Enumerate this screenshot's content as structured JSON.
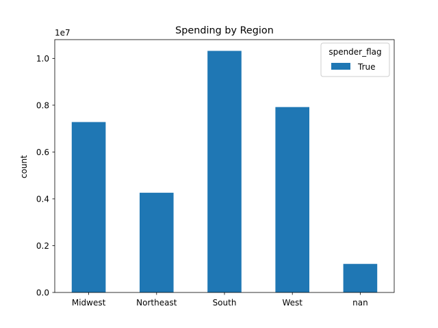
{
  "chart_data": {
    "type": "bar",
    "title": "Spending by Region",
    "xlabel": "",
    "ylabel": "count",
    "offset_text": "1e7",
    "categories": [
      "Midwest",
      "Northeast",
      "South",
      "West",
      "nan"
    ],
    "series": [
      {
        "name": "True",
        "values": [
          7280000,
          4260000,
          10320000,
          7920000,
          1220000
        ]
      }
    ],
    "ylim": [
      0,
      10800000
    ],
    "yticks": [
      0,
      2000000,
      4000000,
      6000000,
      8000000,
      10000000
    ],
    "ytick_labels": [
      "0.0",
      "0.2",
      "0.4",
      "0.6",
      "0.8",
      "1.0"
    ],
    "legend": {
      "title": "spender_flag",
      "position": "top-right"
    },
    "grid": false,
    "colors": {
      "series": "#1f77b4"
    }
  }
}
